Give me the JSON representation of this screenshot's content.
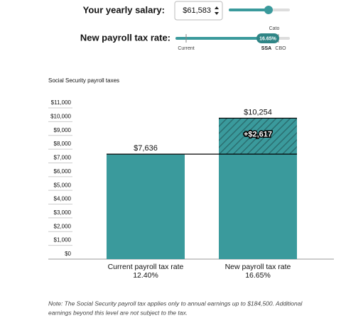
{
  "controls": {
    "salary": {
      "label": "Your yearly salary:",
      "value": "$61,583"
    },
    "rate": {
      "label": "New payroll tax rate:",
      "value": "16.65%",
      "markers": [
        "Current",
        "SSA",
        "CBO",
        "Cato"
      ]
    }
  },
  "chart_data": {
    "type": "bar",
    "title": "Social Security payroll taxes",
    "categories": [
      "Current payroll tax rate",
      "New payroll tax rate"
    ],
    "category_rates": [
      "12.40%",
      "16.65%"
    ],
    "values": [
      7636,
      10254
    ],
    "value_labels": [
      "$7,636",
      "$10,254"
    ],
    "increase": {
      "value": 2617,
      "label": "+$2,617"
    },
    "color": "#3a9a9c",
    "hatch_color": "#2b6e70",
    "ylim": [
      0,
      11000
    ],
    "yticks": [
      {
        "value": 0,
        "label": "$0"
      },
      {
        "value": 1000,
        "label": "$1,000"
      },
      {
        "value": 2000,
        "label": "$2,000"
      },
      {
        "value": 3000,
        "label": "$3,000"
      },
      {
        "value": 4000,
        "label": "$4,000"
      },
      {
        "value": 5000,
        "label": "$5,000"
      },
      {
        "value": 6000,
        "label": "$6,000"
      },
      {
        "value": 7000,
        "label": "$7,000"
      },
      {
        "value": 8000,
        "label": "$8,000"
      },
      {
        "value": 9000,
        "label": "$9,000"
      },
      {
        "value": 10000,
        "label": "$10,000"
      },
      {
        "value": 11000,
        "label": "$11,000"
      }
    ],
    "grid": true
  },
  "note": [
    "Note: The Social Security payroll tax applies only to annual earnings up to $184,500. Additional",
    "earnings beyond this level are not subject to the tax."
  ]
}
